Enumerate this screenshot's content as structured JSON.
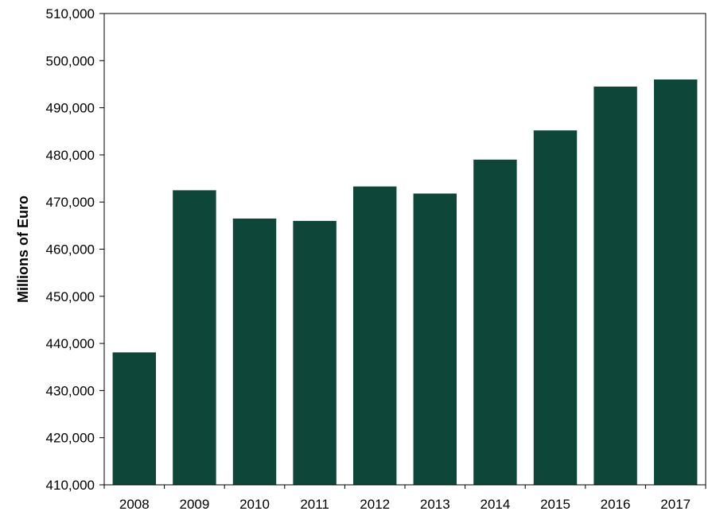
{
  "chart_data": {
    "type": "bar",
    "title": "",
    "xlabel": "",
    "ylabel": "Millions of Euro",
    "categories": [
      "2008",
      "2009",
      "2010",
      "2011",
      "2012",
      "2013",
      "2014",
      "2015",
      "2016",
      "2017"
    ],
    "values": [
      438100,
      472500,
      466500,
      466000,
      473300,
      471800,
      479000,
      485200,
      494500,
      496000
    ],
    "ylim": [
      410000,
      510000
    ],
    "yticks": [
      410000,
      420000,
      430000,
      440000,
      450000,
      460000,
      470000,
      480000,
      490000,
      500000,
      510000
    ],
    "ytick_labels": [
      "410,000",
      "420,000",
      "430,000",
      "440,000",
      "450,000",
      "460,000",
      "470,000",
      "480,000",
      "490,000",
      "500,000",
      "510,000"
    ],
    "grid": false,
    "legend": "none",
    "bar_color": "#0e463a"
  }
}
